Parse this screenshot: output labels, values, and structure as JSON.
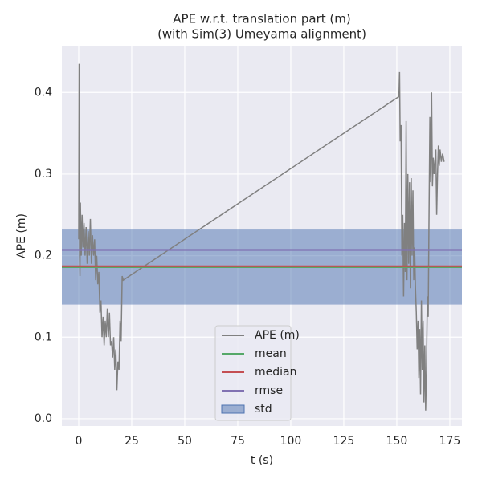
{
  "chart_data": {
    "type": "line",
    "title": "APE w.r.t. translation part (m)",
    "subtitle": "(with Sim(3) Umeyama alignment)",
    "x_label": "t (s)",
    "y_label": "APE (m)",
    "xlim": [
      -7.95,
      180.7
    ],
    "ylim": [
      -0.0089,
      0.4573
    ],
    "xticks": [
      0,
      25,
      50,
      75,
      100,
      125,
      150,
      175
    ],
    "yticks": [
      {
        "value": 0,
        "label": "0.0"
      },
      0.1,
      0.2,
      0.3,
      0.4
    ],
    "grid": true,
    "legend": "lower center",
    "series": [
      {
        "name": "APE (m)",
        "color": "#808080",
        "x": [
          0,
          0.2,
          0.4,
          0.6,
          0.8,
          1.2,
          1.6,
          2,
          2.5,
          3,
          3.5,
          4,
          4.5,
          5,
          5.5,
          6,
          6.5,
          7,
          7.5,
          8,
          8.5,
          9,
          9.5,
          10,
          10.5,
          11,
          11.5,
          12,
          12.5,
          13,
          13.5,
          14,
          14.5,
          15,
          15.5,
          16,
          16.5,
          17,
          17.5,
          18,
          18.5,
          19,
          19.5,
          20,
          20.5,
          21,
          151,
          151.3,
          151.6,
          152,
          152.4,
          152.8,
          153.2,
          153.6,
          154,
          154.4,
          154.8,
          155.2,
          155.6,
          156,
          156.4,
          156.8,
          157.2,
          157.6,
          158,
          158.4,
          158.8,
          159.2,
          159.6,
          160,
          160.4,
          160.8,
          161.2,
          161.6,
          162,
          162.4,
          162.8,
          163.2,
          163.6,
          164,
          164.4,
          164.8,
          165.2,
          165.6,
          166,
          166.4,
          166.8,
          167.2,
          167.6,
          168,
          168.4,
          168.8,
          169.2,
          169.6,
          170,
          170.4,
          171,
          171.6,
          172.3
        ],
        "values": [
          0.22,
          0.435,
          0.2,
          0.175,
          0.265,
          0.2,
          0.25,
          0.21,
          0.24,
          0.2,
          0.235,
          0.19,
          0.23,
          0.2,
          0.245,
          0.19,
          0.225,
          0.2,
          0.22,
          0.17,
          0.2,
          0.165,
          0.18,
          0.13,
          0.145,
          0.1,
          0.125,
          0.09,
          0.12,
          0.1,
          0.135,
          0.1,
          0.13,
          0.09,
          0.095,
          0.075,
          0.1,
          0.06,
          0.085,
          0.035,
          0.07,
          0.06,
          0.12,
          0.095,
          0.175,
          0.17,
          0.395,
          0.425,
          0.34,
          0.36,
          0.2,
          0.25,
          0.15,
          0.24,
          0.18,
          0.365,
          0.17,
          0.3,
          0.19,
          0.29,
          0.16,
          0.295,
          0.2,
          0.28,
          0.17,
          0.21,
          0.16,
          0.13,
          0.085,
          0.12,
          0.05,
          0.11,
          0.03,
          0.145,
          0.06,
          0.12,
          0.02,
          0.09,
          0.01,
          0.06,
          0.15,
          0.125,
          0.25,
          0.37,
          0.29,
          0.4,
          0.285,
          0.32,
          0.3,
          0.315,
          0.33,
          0.25,
          0.3,
          0.335,
          0.31,
          0.33,
          0.315,
          0.325,
          0.315
        ]
      }
    ],
    "reference_lines": [
      {
        "name": "mean",
        "value": 0.186,
        "color": "#55a868"
      },
      {
        "name": "median",
        "value": 0.187,
        "color": "#c44e52"
      },
      {
        "name": "rmse",
        "value": 0.207,
        "color": "#8172b2"
      }
    ],
    "std_band": {
      "name": "std",
      "value": 0.046,
      "color": "#4c72b0"
    }
  }
}
